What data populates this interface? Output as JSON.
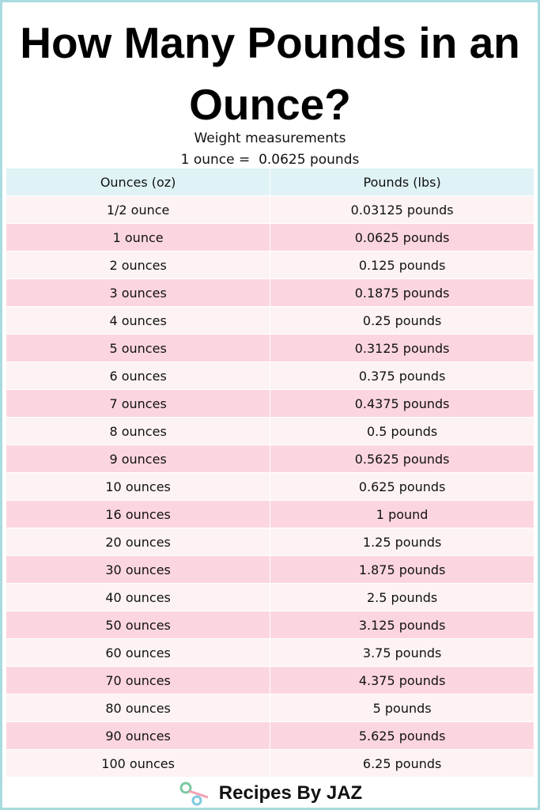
{
  "header": {
    "title": "How Many Pounds in an Ounce?",
    "subtitle": "Weight measurements",
    "formula": "1 ounce =  0.0625 pounds"
  },
  "table": {
    "columns": [
      "Ounces (oz)",
      "Pounds (lbs)"
    ],
    "rows": [
      [
        "1/2 ounce",
        "0.03125 pounds"
      ],
      [
        "1 ounce",
        "0.0625 pounds"
      ],
      [
        "2 ounces",
        "0.125 pounds"
      ],
      [
        "3 ounces",
        "0.1875 pounds"
      ],
      [
        "4 ounces",
        "0.25 pounds"
      ],
      [
        "5 ounces",
        "0.3125 pounds"
      ],
      [
        "6 ounces",
        "0.375 pounds"
      ],
      [
        "7 ounces",
        "0.4375 pounds"
      ],
      [
        "8 ounces",
        "0.5 pounds"
      ],
      [
        "9 ounces",
        "0.5625 pounds"
      ],
      [
        "10 ounces",
        "0.625 pounds"
      ],
      [
        "16 ounces",
        "1 pound"
      ],
      [
        "20 ounces",
        "1.25 pounds"
      ],
      [
        "30 ounces",
        "1.875 pounds"
      ],
      [
        "40 ounces",
        "2.5 pounds"
      ],
      [
        "50 ounces",
        "3.125 pounds"
      ],
      [
        "60 ounces",
        "3.75 pounds"
      ],
      [
        "70 ounces",
        "4.375 pounds"
      ],
      [
        "80 ounces",
        "5 pounds"
      ],
      [
        "90 ounces",
        "5.625 pounds"
      ],
      [
        "100 ounces",
        "6.25 pounds"
      ]
    ]
  },
  "footer": {
    "brand": "Recipes By JAZ"
  }
}
